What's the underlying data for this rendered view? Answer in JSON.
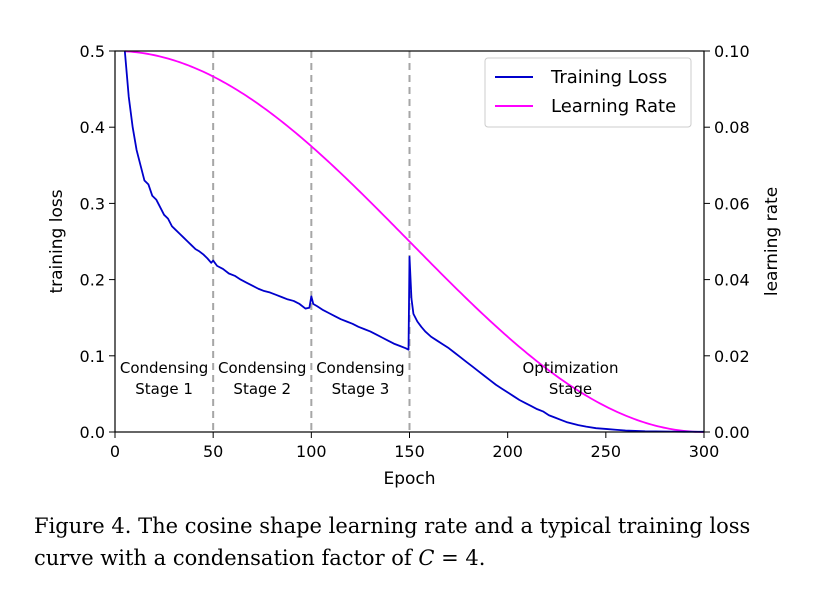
{
  "chart_data": {
    "type": "line",
    "x": {
      "label": "Epoch",
      "range": [
        0,
        300
      ],
      "ticks": [
        0,
        50,
        100,
        150,
        200,
        250,
        300
      ]
    },
    "y_left": {
      "label": "training loss",
      "range": [
        0,
        0.5
      ],
      "ticks": [
        0.0,
        0.1,
        0.2,
        0.3,
        0.4,
        0.5
      ],
      "tick_labels": [
        "0.0",
        "0.1",
        "0.2",
        "0.3",
        "0.4",
        "0.5"
      ]
    },
    "y_right": {
      "label": "learning rate",
      "range": [
        0,
        0.1
      ],
      "ticks": [
        0.0,
        0.02,
        0.04,
        0.06,
        0.08,
        0.1
      ],
      "tick_labels": [
        "0.00",
        "0.02",
        "0.04",
        "0.06",
        "0.08",
        "0.10"
      ]
    },
    "series": [
      {
        "name": "Training Loss",
        "color": "#0000cc",
        "axis": "left",
        "points": [
          [
            5,
            0.5
          ],
          [
            7,
            0.44
          ],
          [
            9,
            0.4
          ],
          [
            11,
            0.37
          ],
          [
            13,
            0.35
          ],
          [
            15,
            0.33
          ],
          [
            17,
            0.325
          ],
          [
            19,
            0.31
          ],
          [
            21,
            0.305
          ],
          [
            23,
            0.295
          ],
          [
            25,
            0.285
          ],
          [
            27,
            0.28
          ],
          [
            29,
            0.27
          ],
          [
            31,
            0.265
          ],
          [
            33,
            0.26
          ],
          [
            35,
            0.255
          ],
          [
            37,
            0.25
          ],
          [
            39,
            0.245
          ],
          [
            41,
            0.24
          ],
          [
            43,
            0.237
          ],
          [
            45,
            0.233
          ],
          [
            47,
            0.228
          ],
          [
            49,
            0.222
          ],
          [
            50,
            0.225
          ],
          [
            52,
            0.218
          ],
          [
            55,
            0.214
          ],
          [
            58,
            0.208
          ],
          [
            61,
            0.205
          ],
          [
            64,
            0.2
          ],
          [
            67,
            0.196
          ],
          [
            70,
            0.192
          ],
          [
            73,
            0.188
          ],
          [
            76,
            0.185
          ],
          [
            79,
            0.183
          ],
          [
            82,
            0.18
          ],
          [
            85,
            0.177
          ],
          [
            88,
            0.174
          ],
          [
            91,
            0.172
          ],
          [
            94,
            0.168
          ],
          [
            97,
            0.162
          ],
          [
            99,
            0.163
          ],
          [
            100,
            0.178
          ],
          [
            101,
            0.168
          ],
          [
            103,
            0.165
          ],
          [
            106,
            0.16
          ],
          [
            109,
            0.156
          ],
          [
            112,
            0.152
          ],
          [
            115,
            0.148
          ],
          [
            118,
            0.145
          ],
          [
            121,
            0.142
          ],
          [
            124,
            0.138
          ],
          [
            127,
            0.135
          ],
          [
            130,
            0.132
          ],
          [
            133,
            0.128
          ],
          [
            136,
            0.124
          ],
          [
            139,
            0.12
          ],
          [
            142,
            0.116
          ],
          [
            145,
            0.113
          ],
          [
            148,
            0.11
          ],
          [
            149.5,
            0.108
          ],
          [
            150,
            0.23
          ],
          [
            151,
            0.175
          ],
          [
            152,
            0.155
          ],
          [
            154,
            0.145
          ],
          [
            156,
            0.138
          ],
          [
            158,
            0.132
          ],
          [
            161,
            0.125
          ],
          [
            164,
            0.12
          ],
          [
            167,
            0.115
          ],
          [
            170,
            0.11
          ],
          [
            173,
            0.104
          ],
          [
            176,
            0.098
          ],
          [
            179,
            0.092
          ],
          [
            182,
            0.086
          ],
          [
            185,
            0.08
          ],
          [
            188,
            0.074
          ],
          [
            191,
            0.068
          ],
          [
            194,
            0.062
          ],
          [
            197,
            0.057
          ],
          [
            200,
            0.052
          ],
          [
            203,
            0.047
          ],
          [
            206,
            0.042
          ],
          [
            209,
            0.038
          ],
          [
            212,
            0.034
          ],
          [
            215,
            0.03
          ],
          [
            218,
            0.027
          ],
          [
            221,
            0.022
          ],
          [
            224,
            0.019
          ],
          [
            227,
            0.016
          ],
          [
            230,
            0.013
          ],
          [
            233,
            0.011
          ],
          [
            236,
            0.009
          ],
          [
            240,
            0.007
          ],
          [
            245,
            0.005
          ],
          [
            250,
            0.004
          ],
          [
            255,
            0.003
          ],
          [
            260,
            0.002
          ],
          [
            265,
            0.0015
          ],
          [
            270,
            0.001
          ],
          [
            275,
            0.0008
          ],
          [
            280,
            0.0006
          ],
          [
            285,
            0.0005
          ],
          [
            290,
            0.0004
          ],
          [
            295,
            0.0003
          ],
          [
            300,
            0.0003
          ]
        ]
      },
      {
        "name": "Learning Rate",
        "color": "#ff00ff",
        "axis": "right",
        "formula": "0.05 * (1 + cos(pi * epoch / 300))",
        "x_range": [
          5,
          300
        ]
      }
    ],
    "legend": {
      "entries": [
        "Training Loss",
        "Learning Rate"
      ],
      "position": "top-right"
    },
    "vlines": {
      "x": [
        50,
        100,
        150
      ],
      "style": "dashed",
      "color": "#a6a6a6"
    },
    "annotations": [
      {
        "x": 25,
        "line1": "Condensing",
        "line2": "Stage 1"
      },
      {
        "x": 75,
        "line1": "Condensing",
        "line2": "Stage 2"
      },
      {
        "x": 125,
        "line1": "Condensing",
        "line2": "Stage 3"
      },
      {
        "x": 232,
        "line1": "Optimization",
        "line2": "Stage"
      }
    ]
  },
  "caption": {
    "prefix": "Figure 4. The cosine shape learning rate and a typical training loss curve with a condensation factor of ",
    "variable": "C",
    "suffix": " = 4."
  }
}
